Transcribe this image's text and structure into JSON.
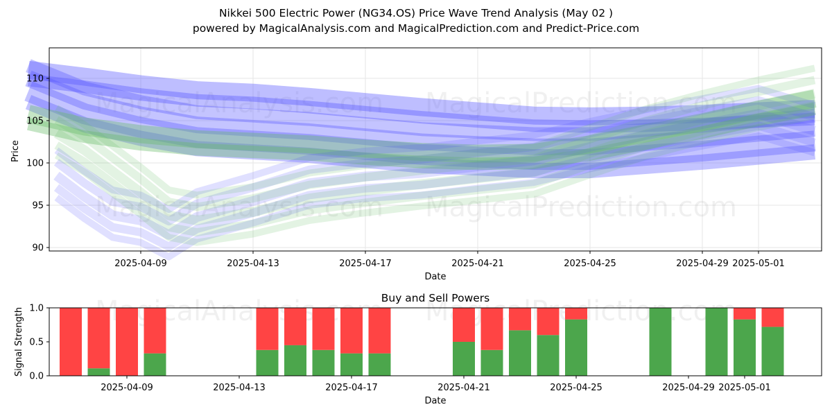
{
  "title": "Nikkei 500 Electric Power (NG34.OS) Price Wave Trend Analysis (May 02 )",
  "subtitle": "powered by MagicalAnalysis.com and MagicalPrediction.com and Predict-Price.com",
  "watermarks": [
    "MagicalAnalysis.com",
    "MagicalPrediction.com"
  ],
  "colors": {
    "blue_wave": "#5555ff",
    "green_wave": "#66bb66",
    "buy": "#4ca64c",
    "sell": "#ff4444"
  },
  "chart_data": [
    {
      "type": "area",
      "title": "",
      "xlabel": "Date",
      "ylabel": "Price",
      "xlim": [
        "2025-04-05",
        "2025-05-04"
      ],
      "ylim": [
        89.5,
        113.5
      ],
      "xticks": [
        "2025-04-09",
        "2025-04-13",
        "2025-04-17",
        "2025-04-21",
        "2025-04-25",
        "2025-04-29",
        "2025-05-01"
      ],
      "yticks": [
        90,
        95,
        100,
        105,
        110
      ],
      "grid": true,
      "series": [
        {
          "color": "blue",
          "kind": "upper-band",
          "x": [
            "2025-04-05",
            "2025-04-07",
            "2025-04-09",
            "2025-04-11",
            "2025-04-13",
            "2025-04-15",
            "2025-04-17",
            "2025-04-19",
            "2025-04-21",
            "2025-04-23",
            "2025-04-25",
            "2025-04-27",
            "2025-04-29",
            "2025-05-01",
            "2025-05-03"
          ],
          "values": [
            111,
            110.2,
            109.3,
            108.6,
            108.3,
            107.8,
            107.2,
            106.6,
            106.1,
            105.6,
            105.5,
            105.6,
            105.8,
            106.1,
            106.4
          ]
        },
        {
          "color": "blue",
          "kind": "main-band",
          "x": [
            "2025-04-05",
            "2025-04-07",
            "2025-04-09",
            "2025-04-11",
            "2025-04-13",
            "2025-04-15",
            "2025-04-17",
            "2025-04-19",
            "2025-04-21",
            "2025-04-23",
            "2025-04-25",
            "2025-04-27",
            "2025-04-29",
            "2025-05-01",
            "2025-05-03"
          ],
          "values": [
            108.5,
            105.8,
            104.2,
            103,
            102.6,
            102.2,
            101.6,
            101,
            100.7,
            100.4,
            100.4,
            100.9,
            101.4,
            102,
            102.6
          ]
        },
        {
          "color": "green",
          "kind": "upper-band",
          "x": [
            "2025-04-05",
            "2025-04-07",
            "2025-04-09",
            "2025-04-11",
            "2025-04-13",
            "2025-04-15",
            "2025-04-17",
            "2025-04-19",
            "2025-04-21",
            "2025-04-23",
            "2025-04-25",
            "2025-04-27",
            "2025-04-29",
            "2025-05-01",
            "2025-05-03"
          ],
          "values": [
            105.8,
            104.3,
            103.4,
            102.8,
            102.5,
            102.2,
            101.7,
            101.3,
            101.1,
            101.2,
            102.2,
            103.5,
            104.8,
            106.3,
            107.6
          ]
        },
        {
          "color": "blue",
          "kind": "lower-wave",
          "x": [
            "2025-04-06",
            "2025-04-07",
            "2025-04-08",
            "2025-04-09",
            "2025-04-10",
            "2025-04-11",
            "2025-04-13",
            "2025-04-15",
            "2025-04-17",
            "2025-04-19",
            "2025-04-21",
            "2025-04-23",
            "2025-04-25",
            "2025-04-27",
            "2025-04-29",
            "2025-05-01",
            "2025-05-03"
          ],
          "values": [
            98.5,
            96,
            93.8,
            93.2,
            91.5,
            93.6,
            95.5,
            97.6,
            98.4,
            98.8,
            99.6,
            100.3,
            101.9,
            103.3,
            104.6,
            105.8,
            103.8
          ]
        },
        {
          "color": "green",
          "kind": "lower-wave",
          "x": [
            "2025-04-06",
            "2025-04-07",
            "2025-04-08",
            "2025-04-09",
            "2025-04-10",
            "2025-04-11",
            "2025-04-13",
            "2025-04-15",
            "2025-04-17",
            "2025-04-19",
            "2025-04-21",
            "2025-04-23",
            "2025-04-25",
            "2025-04-27",
            "2025-04-29",
            "2025-05-01",
            "2025-05-03"
          ],
          "values": [
            103.5,
            101.5,
            99,
            96.5,
            93.8,
            93.2,
            94.2,
            95.8,
            96.7,
            97.5,
            98.2,
            98.9,
            101.2,
            103.4,
            105.2,
            106.8,
            108.2
          ]
        }
      ]
    },
    {
      "type": "bar",
      "title": "Buy and Sell Powers",
      "xlabel": "Date",
      "ylabel": "Signal Strength",
      "xlim": [
        "2025-04-05",
        "2025-05-04"
      ],
      "ylim": [
        0,
        1
      ],
      "xticks": [
        "2025-04-09",
        "2025-04-13",
        "2025-04-17",
        "2025-04-21",
        "2025-04-25",
        "2025-04-29",
        "2025-05-01"
      ],
      "yticks": [
        0.0,
        0.5,
        1.0
      ],
      "categories": [
        "2025-04-07",
        "2025-04-08",
        "2025-04-09",
        "2025-04-10",
        "2025-04-14",
        "2025-04-15",
        "2025-04-16",
        "2025-04-17",
        "2025-04-18",
        "2025-04-21",
        "2025-04-22",
        "2025-04-23",
        "2025-04-24",
        "2025-04-25",
        "2025-04-28",
        "2025-04-30",
        "2025-05-01",
        "2025-05-02"
      ],
      "series": [
        {
          "name": "buy",
          "values": [
            0,
            0.11,
            0,
            0.33,
            0.38,
            0.45,
            0.38,
            0.33,
            0.33,
            0.5,
            0.38,
            0.67,
            0.6,
            0.83,
            1,
            1,
            0.83,
            0.72
          ]
        },
        {
          "name": "sell",
          "values": [
            1,
            0.89,
            1,
            0.67,
            0.62,
            0.55,
            0.62,
            0.67,
            0.67,
            0.5,
            0.62,
            0.33,
            0.4,
            0.17,
            0,
            0,
            0.17,
            0.28
          ]
        }
      ]
    }
  ]
}
